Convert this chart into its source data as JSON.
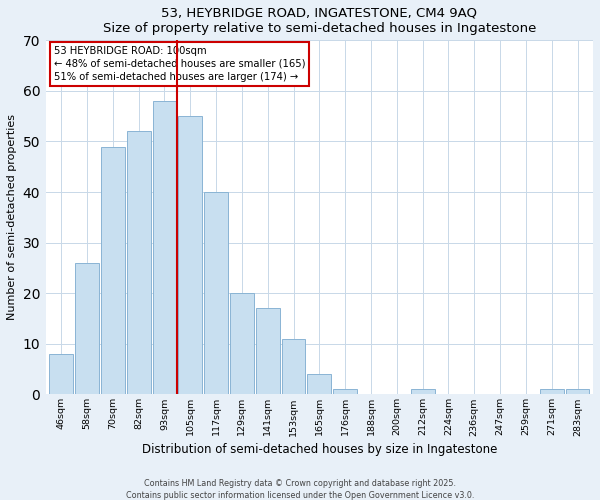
{
  "title": "53, HEYBRIDGE ROAD, INGATESTONE, CM4 9AQ",
  "subtitle": "Size of property relative to semi-detached houses in Ingatestone",
  "xlabel": "Distribution of semi-detached houses by size in Ingatestone",
  "ylabel": "Number of semi-detached properties",
  "bar_labels": [
    "46sqm",
    "58sqm",
    "70sqm",
    "82sqm",
    "93sqm",
    "105sqm",
    "117sqm",
    "129sqm",
    "141sqm",
    "153sqm",
    "165sqm",
    "176sqm",
    "188sqm",
    "200sqm",
    "212sqm",
    "224sqm",
    "236sqm",
    "247sqm",
    "259sqm",
    "271sqm",
    "283sqm"
  ],
  "bar_values": [
    8,
    26,
    49,
    52,
    58,
    55,
    40,
    20,
    17,
    11,
    4,
    1,
    0,
    0,
    1,
    0,
    0,
    0,
    0,
    1,
    1
  ],
  "bar_color": "#c8dff0",
  "bar_edge_color": "#8ab4d4",
  "vline_x": 4.5,
  "vline_color": "#cc0000",
  "annotation_line1": "53 HEYBRIDGE ROAD: 100sqm",
  "annotation_line2": "← 48% of semi-detached houses are smaller (165)",
  "annotation_line3": "51% of semi-detached houses are larger (174) →",
  "ylim": [
    0,
    70
  ],
  "yticks": [
    0,
    10,
    20,
    30,
    40,
    50,
    60,
    70
  ],
  "footer_line1": "Contains HM Land Registry data © Crown copyright and database right 2025.",
  "footer_line2": "Contains public sector information licensed under the Open Government Licence v3.0.",
  "bg_color": "#e8f0f8",
  "plot_bg_color": "#ffffff"
}
